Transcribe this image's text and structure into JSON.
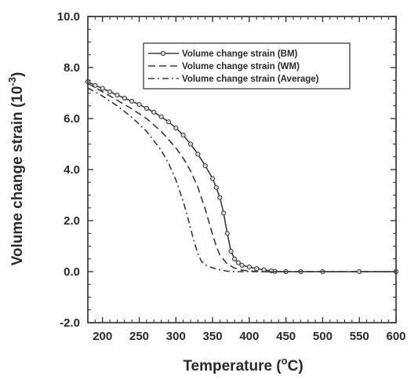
{
  "chart_data": {
    "type": "line",
    "title": "",
    "xlabel": "Temperature (",
    "xlabel_unit": "o",
    "xlabel_suffix": "C)",
    "ylabel": "Volume change strain (10",
    "ylabel_exp": "-3",
    "ylabel_suffix": ")",
    "xlim": [
      180,
      600
    ],
    "ylim": [
      -2.0,
      10.0
    ],
    "xticks": [
      {
        "value": 200,
        "label": "200"
      },
      {
        "value": 250,
        "label": "250"
      },
      {
        "value": 300,
        "label": "300"
      },
      {
        "value": 350,
        "label": "350"
      },
      {
        "value": 400,
        "label": "400"
      },
      {
        "value": 450,
        "label": "450"
      },
      {
        "value": 500,
        "label": "500"
      },
      {
        "value": 550,
        "label": "550"
      },
      {
        "value": 600,
        "label": "600"
      }
    ],
    "yticks": [
      {
        "value": -2.0,
        "label": "-2.0"
      },
      {
        "value": 0.0,
        "label": "0.0"
      },
      {
        "value": 2.0,
        "label": "2.0"
      },
      {
        "value": 4.0,
        "label": "4.0"
      },
      {
        "value": 6.0,
        "label": "6.0"
      },
      {
        "value": 8.0,
        "label": "8.0"
      },
      {
        "value": 10.0,
        "label": "10.0"
      }
    ],
    "grid": false,
    "legend_position": "top-right",
    "series": [
      {
        "name": "Volume change strain (BM)",
        "style": "solid-circles",
        "color": "#3a3a3a",
        "x": [
          180,
          190,
          200,
          210,
          220,
          230,
          240,
          250,
          260,
          270,
          280,
          290,
          300,
          310,
          320,
          330,
          340,
          350,
          355,
          360,
          365,
          370,
          375,
          380,
          385,
          390,
          400,
          410,
          420,
          430,
          435,
          450,
          470,
          500,
          550,
          600
        ],
        "y": [
          7.45,
          7.3,
          7.18,
          7.05,
          6.92,
          6.8,
          6.68,
          6.55,
          6.4,
          6.25,
          6.07,
          5.87,
          5.63,
          5.35,
          5.0,
          4.6,
          4.15,
          3.65,
          3.3,
          2.9,
          2.3,
          1.5,
          0.8,
          0.5,
          0.35,
          0.25,
          0.18,
          0.12,
          0.07,
          0.03,
          0.01,
          0.0,
          0.0,
          0.0,
          0.0,
          0.0
        ]
      },
      {
        "name": "Volume change strain (WM)",
        "style": "dashed",
        "color": "#3a3a3a",
        "x": [
          180,
          200,
          220,
          240,
          260,
          280,
          300,
          310,
          320,
          330,
          340,
          345,
          350,
          355,
          360,
          370,
          380,
          390,
          400,
          420,
          450,
          500,
          600
        ],
        "y": [
          7.38,
          7.05,
          6.72,
          6.38,
          6.0,
          5.5,
          4.85,
          4.45,
          3.95,
          3.3,
          2.45,
          1.95,
          1.45,
          1.0,
          0.65,
          0.3,
          0.14,
          0.06,
          0.03,
          0.0,
          0.0,
          0.0,
          0.0
        ]
      },
      {
        "name": "Volume change strain (Average)",
        "style": "dash-dot",
        "color": "#3a3a3a",
        "x": [
          180,
          200,
          220,
          240,
          260,
          280,
          290,
          300,
          310,
          315,
          320,
          325,
          330,
          335,
          340,
          345,
          350,
          360,
          370,
          380,
          400,
          450,
          500,
          600
        ],
        "y": [
          7.2,
          6.88,
          6.5,
          6.05,
          5.5,
          4.75,
          4.25,
          3.6,
          2.75,
          2.25,
          1.7,
          1.15,
          0.7,
          0.4,
          0.27,
          0.2,
          0.15,
          0.07,
          0.02,
          0.0,
          0.0,
          0.0,
          0.0,
          0.0
        ]
      }
    ]
  }
}
